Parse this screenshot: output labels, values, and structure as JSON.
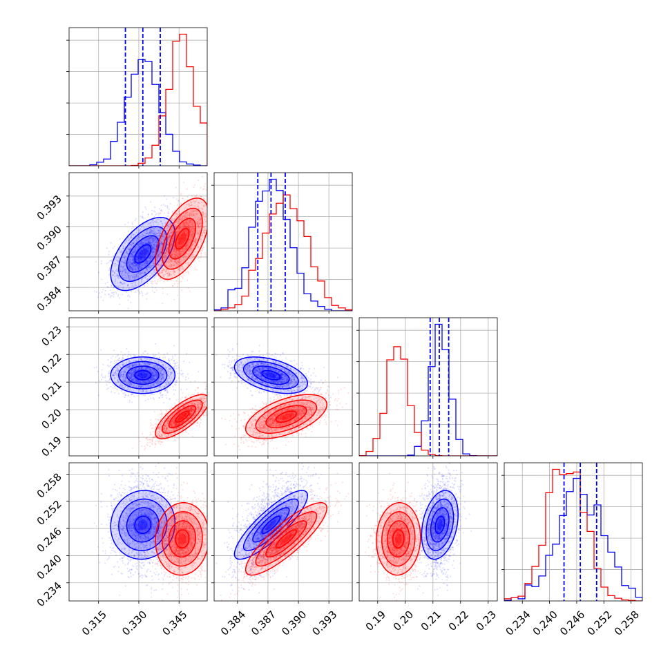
{
  "chart_data": {
    "type": "corner",
    "grid": true,
    "params": [
      {
        "range": [
          0.304,
          0.3555
        ],
        "ticks": [
          0.315,
          0.33,
          0.345
        ],
        "tick_labels": [
          "0.315",
          "0.330",
          "0.345"
        ]
      },
      {
        "range": [
          0.3817,
          0.3953
        ],
        "ticks": [
          0.384,
          0.387,
          0.39,
          0.393
        ],
        "tick_labels": [
          "0.384",
          "0.387",
          "0.390",
          "0.393"
        ]
      },
      {
        "range": [
          0.1833,
          0.2333
        ],
        "ticks": [
          0.19,
          0.2,
          0.21,
          0.22,
          0.23
        ],
        "tick_labels": [
          "0.19",
          "0.20",
          "0.21",
          "0.22",
          "0.23"
        ]
      },
      {
        "range": [
          0.23,
          0.2605
        ],
        "ticks": [
          0.234,
          0.24,
          0.246,
          0.252,
          0.258
        ],
        "tick_labels": [
          "0.234",
          "0.240",
          "0.246",
          "0.252",
          "0.258"
        ]
      }
    ],
    "series": [
      {
        "color": "#0000ff",
        "means": [
          0.3315,
          0.3873,
          0.2125,
          0.2468
        ],
        "sigmas": [
          0.006,
          0.0018,
          0.0033,
          0.0038
        ],
        "correlations": {
          "1-0": 0.55,
          "2-0": 0.0,
          "2-1": -0.45,
          "3-0": 0.05,
          "3-1": 0.85,
          "3-2": 0.3
        },
        "quantiles": [
          [
            0.325,
            0.3315,
            0.338
          ],
          [
            0.386,
            0.3873,
            0.3887
          ],
          [
            0.209,
            0.2123,
            0.2157
          ],
          [
            0.2432,
            0.2468,
            0.2504
          ]
        ]
      },
      {
        "color": "#ff0000",
        "means": [
          0.3462,
          0.3888,
          0.1975,
          0.2437
        ],
        "sigmas": [
          0.005,
          0.002,
          0.004,
          0.004
        ],
        "correlations": {
          "1-0": 0.55,
          "2-0": 0.75,
          "2-1": 0.55,
          "3-0": 0.05,
          "3-1": 0.85,
          "3-2": 0.05
        }
      }
    ]
  }
}
